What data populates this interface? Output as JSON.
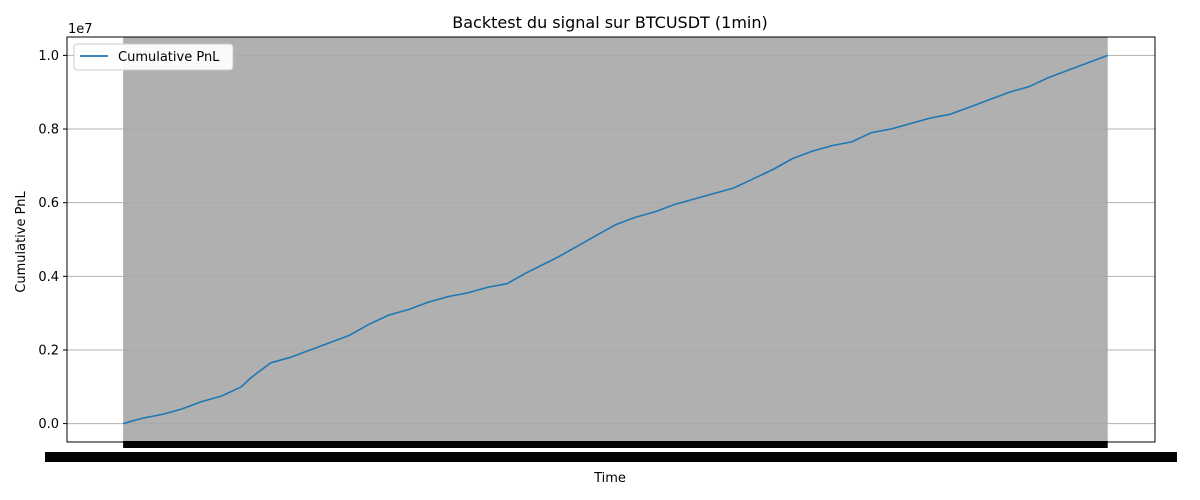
{
  "chart_data": {
    "type": "line",
    "title": "Backtest du signal sur BTCUSDT (1min)",
    "xlabel": "Time",
    "ylabel": "Cumulative PnL",
    "y_offset_label": "1e7",
    "y_tick_labels": [
      "0.0",
      "0.2",
      "0.4",
      "0.6",
      "0.8",
      "1.0"
    ],
    "y_ticks": [
      0.0,
      0.2,
      0.4,
      0.6,
      0.8,
      1.0
    ],
    "ylim": [
      -0.05,
      1.05
    ],
    "xlim": [
      -0.057,
      1.048
    ],
    "grid": "y-axis horizontal gridlines",
    "legend": {
      "position": "upper-left",
      "entries": [
        "Cumulative PnL"
      ]
    },
    "colors": {
      "line": "#1f77b4",
      "axes_background": "#b0b0b0",
      "grid": "#ffffff"
    },
    "x_tick_labels_note": "dense overlapping tick labels",
    "series": [
      {
        "name": "Cumulative PnL",
        "x": [
          0.0,
          0.02,
          0.04,
          0.06,
          0.08,
          0.1,
          0.12,
          0.13,
          0.15,
          0.17,
          0.19,
          0.21,
          0.23,
          0.25,
          0.27,
          0.29,
          0.31,
          0.33,
          0.35,
          0.37,
          0.39,
          0.41,
          0.44,
          0.46,
          0.48,
          0.5,
          0.52,
          0.54,
          0.56,
          0.58,
          0.6,
          0.62,
          0.64,
          0.66,
          0.68,
          0.7,
          0.72,
          0.74,
          0.76,
          0.78,
          0.8,
          0.82,
          0.84,
          0.86,
          0.88,
          0.9,
          0.92,
          0.94,
          0.96,
          0.98,
          1.0
        ],
        "y": [
          0.0,
          0.015,
          0.025,
          0.04,
          0.06,
          0.075,
          0.1,
          0.125,
          0.165,
          0.18,
          0.2,
          0.22,
          0.24,
          0.27,
          0.295,
          0.31,
          0.33,
          0.345,
          0.355,
          0.37,
          0.38,
          0.41,
          0.45,
          0.48,
          0.51,
          0.54,
          0.56,
          0.575,
          0.595,
          0.61,
          0.625,
          0.64,
          0.665,
          0.69,
          0.72,
          0.74,
          0.755,
          0.765,
          0.79,
          0.8,
          0.815,
          0.83,
          0.84,
          0.86,
          0.88,
          0.9,
          0.915,
          0.94,
          0.96,
          0.98,
          1.0
        ]
      }
    ]
  }
}
